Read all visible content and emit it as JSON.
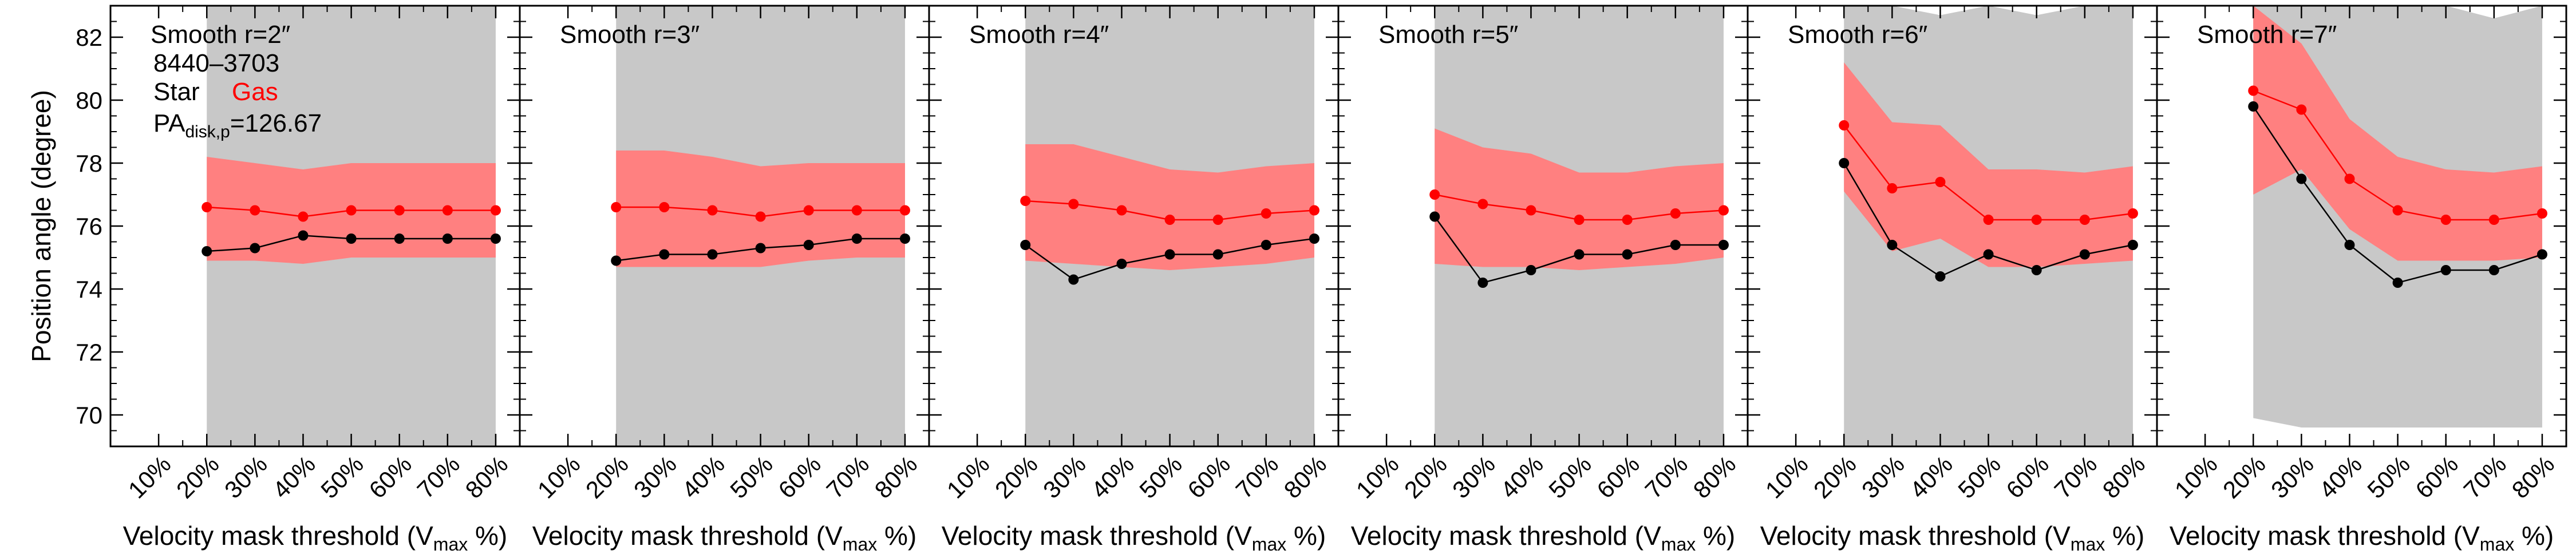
{
  "figure": {
    "ylabel": "Position angle (degree)",
    "xlabel": "Velocity mask threshold (V",
    "xlabel_sub": "max",
    "xlabel_end": " %)",
    "galaxy_id": "8440–3703",
    "legend_star": "Star",
    "legend_gas": "Gas",
    "pa_label": "PA",
    "pa_sub": "disk,p",
    "pa_value": "=126.67",
    "colors": {
      "star": "#000000",
      "gas": "#ff0000",
      "star_band": "#c8c8c8",
      "gas_band": "#ff8080"
    }
  },
  "chart_data": [
    {
      "type": "line",
      "title": "Smooth r=2″",
      "categories": [
        "10%",
        "20%",
        "30%",
        "40%",
        "50%",
        "60%",
        "70%",
        "80%"
      ],
      "ylim": [
        69,
        83
      ],
      "yticks": [
        70,
        72,
        74,
        76,
        78,
        80,
        82
      ],
      "series": [
        {
          "name": "Star",
          "x": [
            20,
            30,
            40,
            50,
            60,
            70,
            80
          ],
          "values": [
            75.2,
            75.3,
            75.7,
            75.6,
            75.6,
            75.6,
            75.6
          ],
          "band_low": [
            69,
            69,
            69,
            69,
            69,
            69,
            69
          ],
          "band_high": [
            83.2,
            83.2,
            83.2,
            83.2,
            83.2,
            83.2,
            83.2
          ]
        },
        {
          "name": "Gas",
          "x": [
            20,
            30,
            40,
            50,
            60,
            70,
            80
          ],
          "values": [
            76.6,
            76.5,
            76.3,
            76.5,
            76.5,
            76.5,
            76.5
          ],
          "band_low": [
            74.9,
            74.9,
            74.8,
            75.0,
            75.0,
            75.0,
            75.0
          ],
          "band_high": [
            78.2,
            78.0,
            77.8,
            78.0,
            78.0,
            78.0,
            78.0
          ]
        }
      ]
    },
    {
      "type": "line",
      "title": "Smooth r=3″",
      "categories": [
        "10%",
        "20%",
        "30%",
        "40%",
        "50%",
        "60%",
        "70%",
        "80%"
      ],
      "ylim": [
        69,
        83
      ],
      "series": [
        {
          "name": "Star",
          "x": [
            20,
            30,
            40,
            50,
            60,
            70,
            80
          ],
          "values": [
            74.9,
            75.1,
            75.1,
            75.3,
            75.4,
            75.6,
            75.6
          ],
          "band_low": [
            69,
            69,
            69,
            69,
            69,
            69,
            69
          ],
          "band_high": [
            83.2,
            83.2,
            83.2,
            83.2,
            83.2,
            83.2,
            83.2
          ]
        },
        {
          "name": "Gas",
          "x": [
            20,
            30,
            40,
            50,
            60,
            70,
            80
          ],
          "values": [
            76.6,
            76.6,
            76.5,
            76.3,
            76.5,
            76.5,
            76.5
          ],
          "band_low": [
            74.7,
            74.7,
            74.7,
            74.7,
            74.9,
            75.0,
            75.0
          ],
          "band_high": [
            78.4,
            78.4,
            78.2,
            77.9,
            78.0,
            78.0,
            78.0
          ]
        }
      ]
    },
    {
      "type": "line",
      "title": "Smooth r=4″",
      "categories": [
        "10%",
        "20%",
        "30%",
        "40%",
        "50%",
        "60%",
        "70%",
        "80%"
      ],
      "ylim": [
        69,
        83
      ],
      "series": [
        {
          "name": "Star",
          "x": [
            20,
            30,
            40,
            50,
            60,
            70,
            80
          ],
          "values": [
            75.4,
            74.3,
            74.8,
            75.1,
            75.1,
            75.4,
            75.6
          ],
          "band_low": [
            69,
            69,
            69,
            69,
            69,
            69,
            69
          ],
          "band_high": [
            83.2,
            83.2,
            83.0,
            83.2,
            83.0,
            83.1,
            83.2
          ]
        },
        {
          "name": "Gas",
          "x": [
            20,
            30,
            40,
            50,
            60,
            70,
            80
          ],
          "values": [
            76.8,
            76.7,
            76.5,
            76.2,
            76.2,
            76.4,
            76.5
          ],
          "band_low": [
            74.9,
            74.8,
            74.7,
            74.6,
            74.7,
            74.8,
            75.0
          ],
          "band_high": [
            78.6,
            78.6,
            78.2,
            77.8,
            77.7,
            77.9,
            78.0
          ]
        }
      ]
    },
    {
      "type": "line",
      "title": "Smooth r=5″",
      "categories": [
        "10%",
        "20%",
        "30%",
        "40%",
        "50%",
        "60%",
        "70%",
        "80%"
      ],
      "ylim": [
        69,
        83
      ],
      "series": [
        {
          "name": "Star",
          "x": [
            20,
            30,
            40,
            50,
            60,
            70,
            80
          ],
          "values": [
            76.3,
            74.2,
            74.6,
            75.1,
            75.1,
            75.4,
            75.4
          ],
          "band_low": [
            69,
            69,
            69,
            69,
            69,
            69,
            69
          ],
          "band_high": [
            83.2,
            83.0,
            83.0,
            83.2,
            83.1,
            83.1,
            83.2
          ]
        },
        {
          "name": "Gas",
          "x": [
            20,
            30,
            40,
            50,
            60,
            70,
            80
          ],
          "values": [
            77.0,
            76.7,
            76.5,
            76.2,
            76.2,
            76.4,
            76.5
          ],
          "band_low": [
            74.8,
            74.7,
            74.7,
            74.6,
            74.7,
            74.8,
            75.0
          ],
          "band_high": [
            79.1,
            78.5,
            78.3,
            77.7,
            77.7,
            77.9,
            78.0
          ]
        }
      ]
    },
    {
      "type": "line",
      "title": "Smooth r=6″",
      "categories": [
        "10%",
        "20%",
        "30%",
        "40%",
        "50%",
        "60%",
        "70%",
        "80%"
      ],
      "ylim": [
        69,
        83
      ],
      "series": [
        {
          "name": "Star",
          "x": [
            20,
            30,
            40,
            50,
            60,
            70,
            80
          ],
          "values": [
            78.0,
            75.4,
            74.4,
            75.1,
            74.6,
            75.1,
            75.4
          ],
          "band_low": [
            69,
            69,
            69,
            69,
            69,
            69,
            69
          ],
          "band_high": [
            83.2,
            83.2,
            82.7,
            83.2,
            82.7,
            83.0,
            83.2
          ]
        },
        {
          "name": "Gas",
          "x": [
            20,
            30,
            40,
            50,
            60,
            70,
            80
          ],
          "values": [
            79.2,
            77.2,
            77.4,
            76.2,
            76.2,
            76.2,
            76.4
          ],
          "band_low": [
            77.1,
            75.2,
            75.6,
            74.7,
            74.7,
            74.8,
            74.9
          ],
          "band_high": [
            81.2,
            79.3,
            79.2,
            77.8,
            77.8,
            77.7,
            77.9
          ]
        }
      ]
    },
    {
      "type": "line",
      "title": "Smooth r=7″",
      "categories": [
        "10%",
        "20%",
        "30%",
        "40%",
        "50%",
        "60%",
        "70%",
        "80%"
      ],
      "ylim": [
        69,
        83
      ],
      "series": [
        {
          "name": "Star",
          "x": [
            20,
            30,
            40,
            50,
            60,
            70,
            80
          ],
          "values": [
            79.8,
            77.5,
            75.4,
            74.2,
            74.6,
            74.6,
            75.1
          ],
          "band_low": [
            69.9,
            69.6,
            69.6,
            69.6,
            69.6,
            69.6,
            69.6
          ],
          "band_high": [
            83.2,
            83.2,
            83.2,
            83.0,
            83.0,
            82.6,
            83.0
          ]
        },
        {
          "name": "Gas",
          "x": [
            20,
            30,
            40,
            50,
            60,
            70,
            80
          ],
          "values": [
            80.3,
            79.7,
            77.5,
            76.5,
            76.2,
            76.2,
            76.4
          ],
          "band_low": [
            77.0,
            77.8,
            75.9,
            74.9,
            74.9,
            74.9,
            75.0
          ],
          "band_high": [
            83.2,
            81.8,
            79.4,
            78.2,
            77.8,
            77.7,
            77.9
          ]
        }
      ]
    }
  ]
}
